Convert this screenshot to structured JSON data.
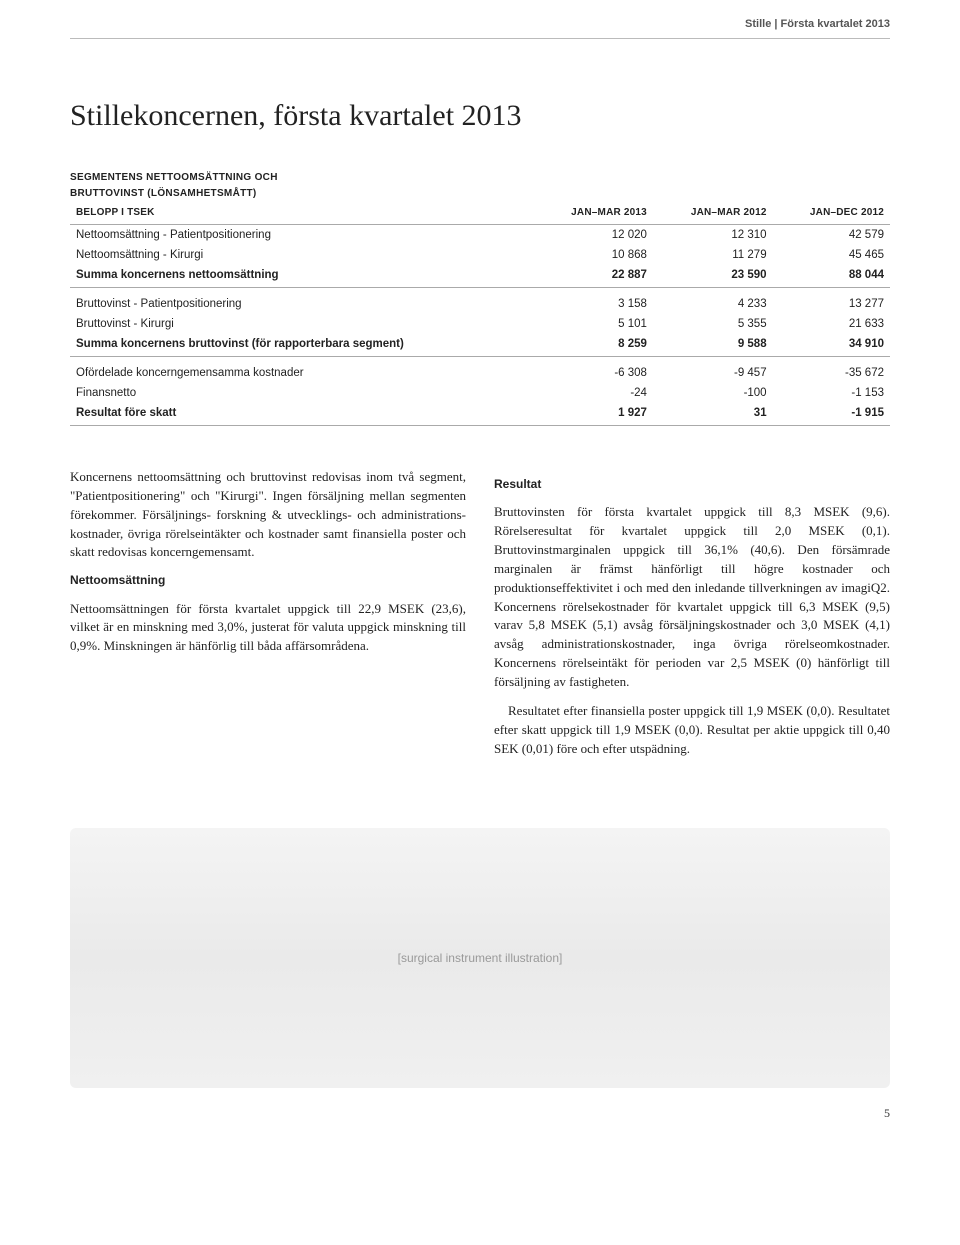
{
  "header": {
    "brand": "Stille",
    "sep": "|",
    "period": "Första kvartalet 2013"
  },
  "title": "Stillekoncernen, första kvartalet 2013",
  "table": {
    "caption_line1": "SEGMENTENS NETTOOMSÄTTNING OCH",
    "caption_line2": "BRUTTOVINST (LÖNSAMHETSMÅTT)",
    "col_label_header": "BELOPP I TSEK",
    "columns": [
      "JAN–MAR 2013",
      "JAN–MAR 2012",
      "JAN–DEC 2012"
    ],
    "rows": [
      {
        "label": "Nettoomsättning - Patientpositionering",
        "vals": [
          "12 020",
          "12 310",
          "42 579"
        ],
        "sum": false,
        "spacer": false
      },
      {
        "label": "Nettoomsättning - Kirurgi",
        "vals": [
          "10 868",
          "11 279",
          "45 465"
        ],
        "sum": false,
        "spacer": false
      },
      {
        "label": "Summa koncernens nettoomsättning",
        "vals": [
          "22 887",
          "23 590",
          "88 044"
        ],
        "sum": true,
        "spacer": false
      },
      {
        "label": "Bruttovinst - Patientpositionering",
        "vals": [
          "3 158",
          "4 233",
          "13 277"
        ],
        "sum": false,
        "spacer": true
      },
      {
        "label": "Bruttovinst - Kirurgi",
        "vals": [
          "5 101",
          "5 355",
          "21 633"
        ],
        "sum": false,
        "spacer": false
      },
      {
        "label": "Summa koncernens bruttovinst (för rapporterbara segment)",
        "vals": [
          "8 259",
          "9 588",
          "34 910"
        ],
        "sum": true,
        "spacer": false
      },
      {
        "label": "Ofördelade koncerngemensamma kostnader",
        "vals": [
          "-6 308",
          "-9 457",
          "-35 672"
        ],
        "sum": false,
        "spacer": true
      },
      {
        "label": "Finansnetto",
        "vals": [
          "-24",
          "-100",
          "-1 153"
        ],
        "sum": false,
        "spacer": false
      },
      {
        "label": "Resultat före skatt",
        "vals": [
          "1 927",
          "31",
          "-1 915"
        ],
        "sum": true,
        "spacer": false
      }
    ],
    "styling": {
      "header_fontsize_pt": 10,
      "body_fontsize_pt": 11.5,
      "border_color": "#aaaaaa",
      "text_color": "#222222",
      "font_family": "Arial"
    }
  },
  "left_col": {
    "p1": "Koncernens nettoomsättning och bruttovinst redovisas inom två segment, \"Patientpositionering\" och \"Kirurgi\". Ingen försäljning mellan segmenten förekommer. Försäljnings- forskning & utvecklings- och administrations­kostnader, övriga rörelseintäkter och kostnader samt finansiella poster och skatt redovisas koncerngemensamt.",
    "sub1": "Nettoomsättning",
    "p2": "Nettoomsättningen för första kvartalet uppgick till 22,9 MSEK (23,6), vilket är en minskning med 3,0%, justerat för valuta uppgick minskning till 0,9%. Minskningen är hänförlig till båda affärsområdena."
  },
  "right_col": {
    "sub1": "Resultat",
    "p1": "Bruttovinsten för första kvartalet uppgick till 8,3 MSEK (9,6). Rörelseresultat för kvartalet uppgick till 2,0 MSEK (0,1). Bruttovinstmarginalen uppgick till 36,1% (40,6). Den försämrade marginalen är främst hänförligt till högre kostnader och produktionseffektivitet i och med den inledande tillverkningen av imagiQ2. Koncernens rörelsekostnader för kvartalet uppgick till 6,3 MSEK (9,5) varav 5,8 MSEK (5,1) avsåg försäljningskostnader och 3,0 MSEK (4,1) avsåg administrationskostnader, inga övriga rörelseomkostnader. Koncernens rörelseintäkt för perioden var 2,5 MSEK (0) hänförligt till försäljning av fastigheten.",
    "p2": "Resultatet efter finansiella poster uppgick till 1,9 MSEK (0,0). Resultatet efter skatt uppgick till 1,9 MSEK (0,0). Resultat per aktie uppgick till 0,40 SEK (0,01) före och efter utspädning."
  },
  "image_placeholder_text": "[surgical instrument illustration]",
  "page_number": "5",
  "colors": {
    "background": "#ffffff",
    "text": "#222222",
    "header_text": "#555555",
    "rule": "#bbbbbb"
  }
}
